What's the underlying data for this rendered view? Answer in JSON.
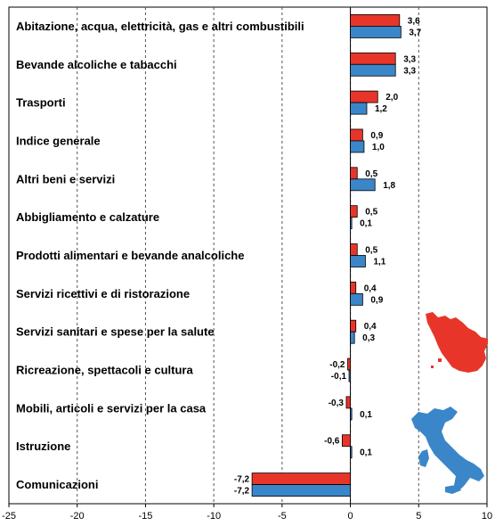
{
  "chart_data": {
    "type": "bar",
    "orientation": "horizontal",
    "categories": [
      "Abitazione, acqua, elettricità, gas e altri combustibili",
      "Bevande alcoliche e tabacchi",
      "Trasporti",
      "Indice generale",
      "Altri beni e servizi",
      "Abbigliamento e calzature",
      "Prodotti alimentari e bevande analcoliche",
      "Servizi ricettivi e di ristorazione",
      "Servizi sanitari e spese per la salute",
      "Ricreazione, spettacoli e cultura",
      "Mobili, articoli e servizi per la casa",
      "Istruzione",
      "Comunicazioni"
    ],
    "series": [
      {
        "color": "#e8352a",
        "values": [
          3.6,
          3.3,
          2.0,
          0.9,
          0.5,
          0.5,
          0.5,
          0.4,
          0.4,
          -0.2,
          -0.3,
          -0.6,
          -7.2
        ],
        "labels": [
          "3,6",
          "3,3",
          "2,0",
          "0,9",
          "0,5",
          "0,5",
          "0,5",
          "0,4",
          "0,4",
          "-0,2",
          "-0,3",
          "-0,6",
          "-7,2"
        ]
      },
      {
        "color": "#3a86c8",
        "values": [
          3.7,
          3.3,
          1.2,
          1.0,
          1.8,
          0.1,
          1.1,
          0.9,
          0.3,
          -0.1,
          0.1,
          0.1,
          -7.2
        ],
        "labels": [
          "3,7",
          "3,3",
          "1,2",
          "1,0",
          "1,8",
          "0,1",
          "1,1",
          "0,9",
          "0,3",
          "-0,1",
          "0,1",
          "0,1",
          "-7,2"
        ]
      }
    ],
    "xlim": [
      -25,
      10
    ],
    "xticks": [
      -25,
      -20,
      -15,
      -10,
      -5,
      0,
      5,
      10
    ],
    "grid": "vertical dashed",
    "legend": "map icons (Tuscany, Italy)"
  }
}
